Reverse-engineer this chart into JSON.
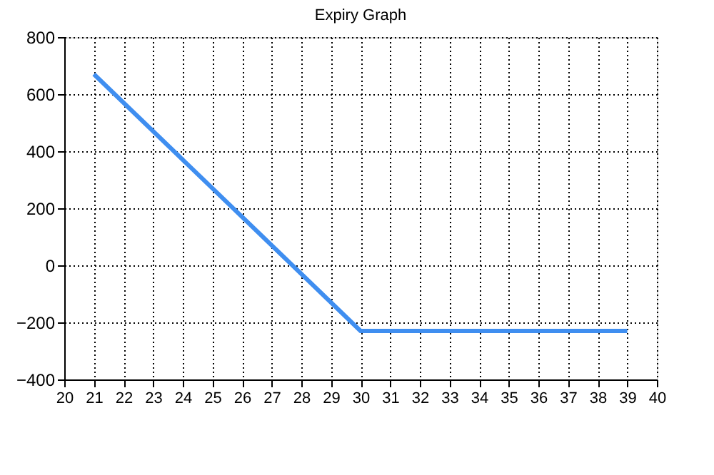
{
  "chart_data": {
    "type": "line",
    "title": "Expiry Graph",
    "x": [
      21,
      30,
      39
    ],
    "series": [
      {
        "color": "#3f8ef0",
        "values": [
          670,
          -230,
          -230
        ]
      }
    ],
    "xlim": [
      20,
      40
    ],
    "xticks": [
      20,
      21,
      22,
      23,
      24,
      25,
      26,
      27,
      28,
      29,
      30,
      31,
      32,
      33,
      34,
      35,
      36,
      37,
      38,
      39,
      40
    ],
    "ylim": [
      -400,
      800
    ],
    "yticks": [
      -400,
      -200,
      0,
      200,
      400,
      600,
      800
    ],
    "grid": true,
    "legend": false,
    "marker": "none",
    "line_style": "solid"
  }
}
